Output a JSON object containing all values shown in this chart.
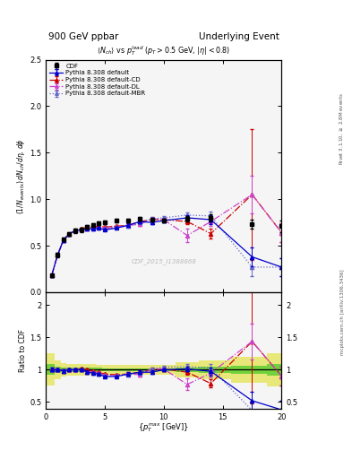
{
  "title_left": "900 GeV ppbar",
  "title_right": "Underlying Event",
  "subtitle": "$\\langle N_{ch}\\rangle$ vs $p_T^{lead}$ ($p_T > 0.5$ GeV, $|\\eta| < 0.8$)",
  "watermark": "CDF_2015_I1388868",
  "ylabel_main": "$(1/N_{events})\\,dN_{ch}/d\\eta,\\,d\\phi$",
  "ylabel_ratio": "Ratio to CDF",
  "xlabel": "$\\{p_T^{max}$ [GeV]$\\}$",
  "right_label_top": "Rivet 3.1.10, $\\geq$ 2.8M events",
  "right_label_bot": "mcplots.cern.ch [arXiv:1306.3436]",
  "xlim": [
    0,
    20
  ],
  "ylim_main": [
    0,
    2.5
  ],
  "ylim_ratio": [
    0.4,
    2.2
  ],
  "cdf_x": [
    0.5,
    1.0,
    1.5,
    2.0,
    2.5,
    3.0,
    3.5,
    4.0,
    4.5,
    5.0,
    6.0,
    7.0,
    8.0,
    9.0,
    10.0,
    12.0,
    14.0,
    17.5,
    20.0
  ],
  "cdf_y": [
    0.18,
    0.4,
    0.57,
    0.63,
    0.66,
    0.67,
    0.7,
    0.72,
    0.74,
    0.75,
    0.77,
    0.77,
    0.79,
    0.78,
    0.77,
    0.79,
    0.8,
    0.73,
    0.71
  ],
  "cdf_yerr": [
    0.015,
    0.02,
    0.02,
    0.02,
    0.02,
    0.02,
    0.02,
    0.02,
    0.02,
    0.02,
    0.02,
    0.02,
    0.02,
    0.02,
    0.02,
    0.03,
    0.04,
    0.05,
    0.06
  ],
  "py_def_x": [
    0.5,
    1.0,
    1.5,
    2.0,
    2.5,
    3.0,
    3.5,
    4.0,
    4.5,
    5.0,
    6.0,
    7.0,
    8.0,
    9.0,
    10.0,
    12.0,
    14.0,
    17.5,
    20.0
  ],
  "py_def_y": [
    0.18,
    0.4,
    0.56,
    0.63,
    0.66,
    0.67,
    0.68,
    0.68,
    0.69,
    0.67,
    0.69,
    0.72,
    0.76,
    0.75,
    0.77,
    0.8,
    0.78,
    0.38,
    0.27
  ],
  "py_def_ye": [
    0.005,
    0.01,
    0.01,
    0.01,
    0.01,
    0.01,
    0.01,
    0.01,
    0.01,
    0.01,
    0.01,
    0.02,
    0.02,
    0.02,
    0.02,
    0.03,
    0.05,
    0.1,
    0.1
  ],
  "py_cd_x": [
    0.5,
    1.0,
    1.5,
    2.0,
    2.5,
    3.0,
    3.5,
    4.0,
    4.5,
    5.0,
    6.0,
    7.0,
    8.0,
    9.0,
    10.0,
    12.0,
    14.0,
    17.5,
    20.0
  ],
  "py_cd_y": [
    0.18,
    0.4,
    0.56,
    0.63,
    0.66,
    0.68,
    0.7,
    0.7,
    0.71,
    0.7,
    0.71,
    0.72,
    0.76,
    0.78,
    0.78,
    0.76,
    0.63,
    1.05,
    0.64
  ],
  "py_cd_ye": [
    0.005,
    0.01,
    0.01,
    0.01,
    0.01,
    0.01,
    0.01,
    0.01,
    0.01,
    0.01,
    0.01,
    0.02,
    0.02,
    0.02,
    0.02,
    0.03,
    0.05,
    0.7,
    0.1
  ],
  "py_dl_x": [
    0.5,
    1.0,
    1.5,
    2.0,
    2.5,
    3.0,
    3.5,
    4.0,
    4.5,
    5.0,
    6.0,
    7.0,
    8.0,
    9.0,
    10.0,
    12.0,
    14.0,
    17.5,
    20.0
  ],
  "py_dl_y": [
    0.18,
    0.4,
    0.56,
    0.63,
    0.66,
    0.67,
    0.68,
    0.69,
    0.7,
    0.69,
    0.7,
    0.72,
    0.73,
    0.79,
    0.78,
    0.61,
    0.76,
    1.05,
    0.64
  ],
  "py_dl_ye": [
    0.005,
    0.01,
    0.01,
    0.01,
    0.01,
    0.01,
    0.01,
    0.01,
    0.01,
    0.01,
    0.01,
    0.02,
    0.02,
    0.02,
    0.02,
    0.07,
    0.05,
    0.2,
    0.1
  ],
  "py_mbr_x": [
    0.5,
    1.0,
    1.5,
    2.0,
    2.5,
    3.0,
    3.5,
    4.0,
    4.5,
    5.0,
    6.0,
    7.0,
    8.0,
    9.0,
    10.0,
    12.0,
    14.0,
    17.5,
    20.0
  ],
  "py_mbr_y": [
    0.18,
    0.4,
    0.56,
    0.63,
    0.66,
    0.67,
    0.68,
    0.68,
    0.69,
    0.68,
    0.7,
    0.71,
    0.75,
    0.79,
    0.8,
    0.83,
    0.82,
    0.27,
    0.27
  ],
  "py_mbr_ye": [
    0.005,
    0.01,
    0.01,
    0.01,
    0.01,
    0.01,
    0.01,
    0.01,
    0.01,
    0.01,
    0.01,
    0.02,
    0.02,
    0.02,
    0.02,
    0.03,
    0.05,
    0.1,
    0.1
  ],
  "color_cdf": "#000000",
  "color_default": "#0000cc",
  "color_cd": "#cc0000",
  "color_dl": "#cc44cc",
  "color_mbr": "#6666cc",
  "color_bg": "#f5f5f5",
  "band_green": "#00bb00",
  "band_yellow": "#dddd00",
  "band_green_alpha": 0.5,
  "band_yellow_alpha": 0.5,
  "main_yticks": [
    0.0,
    0.5,
    1.0,
    1.5,
    2.0,
    2.5
  ],
  "ratio_yticks": [
    0.5,
    1.0,
    1.5,
    2.0
  ],
  "xticks": [
    0,
    5,
    10,
    15,
    20
  ]
}
